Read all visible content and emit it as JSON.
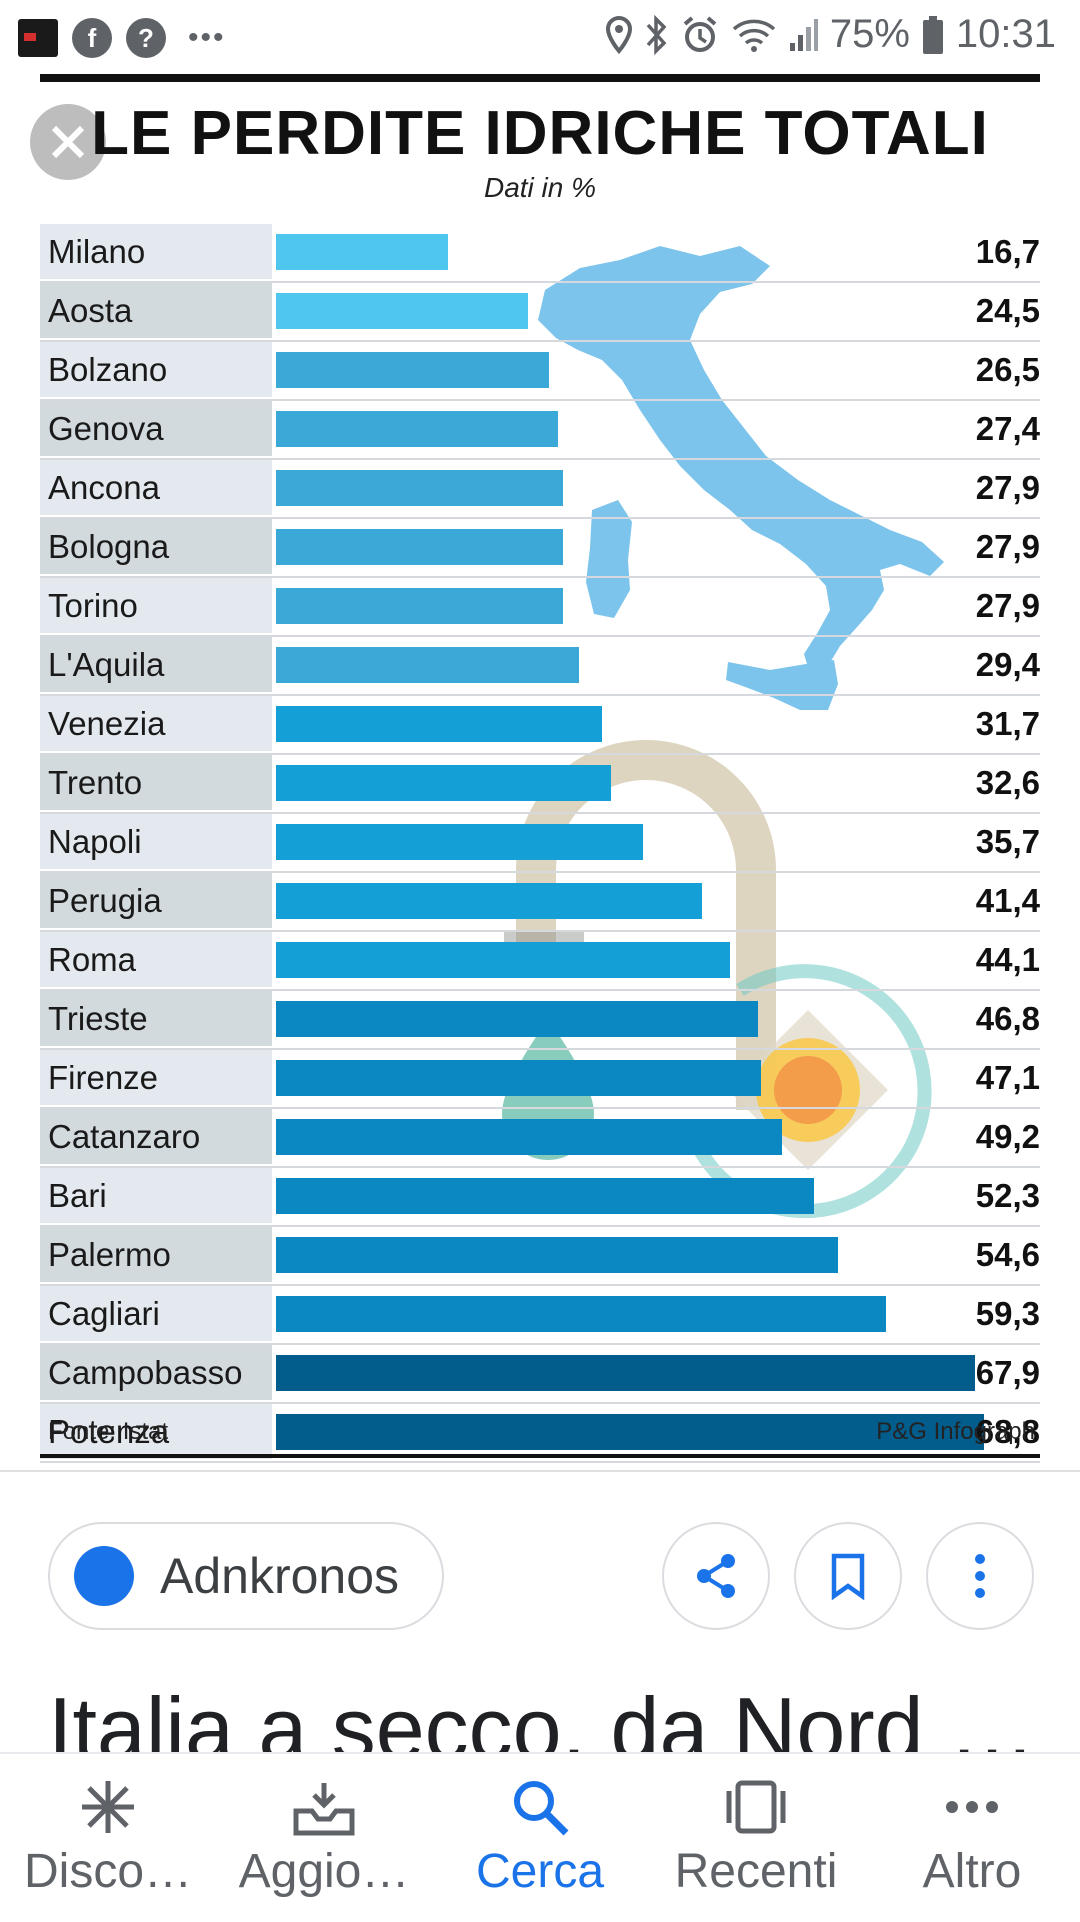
{
  "status_bar": {
    "battery": "75%",
    "time": "10:31",
    "left_icons": [
      "app-thumbnail-icon",
      "facebook-icon",
      "help-icon",
      "more-icon"
    ],
    "right_icons": [
      "location-icon",
      "bluetooth-icon",
      "alarm-icon",
      "wifi-icon",
      "signal-icon",
      "battery-icon"
    ]
  },
  "infographic": {
    "title": "LE PERDITE IDRICHE TOTALI",
    "subtitle": "Dati in %",
    "source": "Fonte: Istat",
    "credit": "P&G Infograph"
  },
  "chart_data": {
    "type": "bar",
    "orientation": "horizontal",
    "title": "LE PERDITE IDRICHE TOTALI",
    "subtitle": "Dati in %",
    "categories": [
      "Milano",
      "Aosta",
      "Bolzano",
      "Genova",
      "Ancona",
      "Bologna",
      "Torino",
      "L'Aquila",
      "Venezia",
      "Trento",
      "Napoli",
      "Perugia",
      "Roma",
      "Trieste",
      "Firenze",
      "Catanzaro",
      "Bari",
      "Palermo",
      "Cagliari",
      "Campobasso",
      "Potenza"
    ],
    "values": [
      16.7,
      24.5,
      26.5,
      27.4,
      27.9,
      27.9,
      27.9,
      29.4,
      31.7,
      32.6,
      35.7,
      41.4,
      44.1,
      46.8,
      47.1,
      49.2,
      52.3,
      54.6,
      59.3,
      67.9,
      68.8
    ],
    "value_labels": [
      "16,7",
      "24,5",
      "26,5",
      "27,4",
      "27,9",
      "27,9",
      "27,9",
      "29,4",
      "31,7",
      "32,6",
      "35,7",
      "41,4",
      "44,1",
      "46,8",
      "47,1",
      "49,2",
      "52,3",
      "54,6",
      "59,3",
      "67,9",
      "68,8"
    ],
    "xlim": [
      0,
      68.8
    ],
    "grid": false,
    "colors": {
      "light": "#4ec6ee",
      "mid": "#3aa9d8",
      "blue": "#14a0d6",
      "deep": "#0b87c2",
      "dark": "#025c8c",
      "map": "#7cc4ec"
    }
  },
  "result": {
    "source_name": "Adnkronos",
    "headline": "Italia a secco, da Nord …",
    "actions": [
      "share-icon",
      "bookmark-icon",
      "more-vert-icon"
    ]
  },
  "nav": {
    "items": [
      {
        "label": "Disco…",
        "icon": "discover-icon"
      },
      {
        "label": "Aggio…",
        "icon": "updates-icon"
      },
      {
        "label": "Cerca",
        "icon": "search-icon"
      },
      {
        "label": "Recenti",
        "icon": "recents-icon"
      },
      {
        "label": "Altro",
        "icon": "more-icon"
      }
    ],
    "active_index": 2
  }
}
